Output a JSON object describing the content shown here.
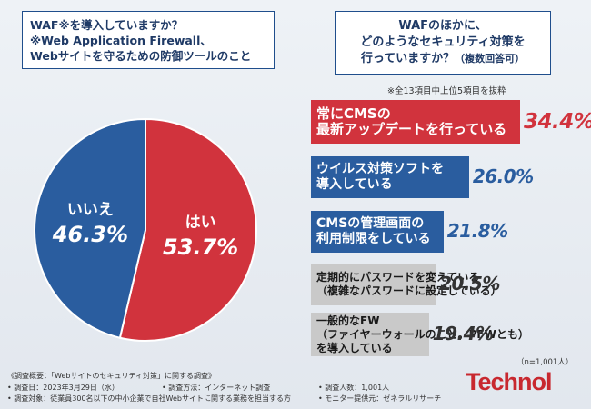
{
  "q1": {
    "line1": "WAF※を導入していますか？",
    "line2": "※Web Application Firewall、",
    "line3": "Webサイトを守るための防御ツールのこと"
  },
  "q2": {
    "line1": "WAFのほかに、",
    "line2": "どのようなセキュリティ対策を",
    "line3": "行っていますか？",
    "line3b": "（複数回答可）"
  },
  "note_top": "※全13項目中上位5項目を抜粋",
  "chart_data": [
    {
      "type": "pie",
      "slices": [
        {
          "label": "はい",
          "value": 53.7,
          "display": "53.7%",
          "color": "#d1333d"
        },
        {
          "label": "いいえ",
          "value": 46.3,
          "display": "46.3%",
          "color": "#2a5d9f"
        }
      ]
    },
    {
      "type": "bar",
      "categories": [
        [
          "常にCMSの",
          "最新アップデートを行っている"
        ],
        [
          "ウイルス対策ソフトを",
          "導入している"
        ],
        [
          "CMSの管理画面の",
          "利用制限をしている"
        ],
        [
          "定期的にパスワードを変えている",
          "（複雑なパスワードに設定している）"
        ],
        [
          "一般的なFW",
          "（ファイヤーウォールのこと。PFWとも）",
          "を導入している"
        ]
      ],
      "values": [
        34.4,
        26.0,
        21.8,
        20.5,
        19.4
      ],
      "display": [
        "34.4%",
        "26.0%",
        "21.8%",
        "20.5%",
        "19.4%"
      ],
      "colors": [
        "#d1333d",
        "#2a5d9f",
        "#2a5d9f",
        "#c9c9c9",
        "#c9c9c9"
      ],
      "value_colors": [
        "#d1333d",
        "#2a5d9f",
        "#2a5d9f",
        "#333333",
        "#333333"
      ]
    }
  ],
  "n_note": "（n=1,001人）",
  "footer": {
    "title": "《調査概要：「Webサイトのセキュリティ対策」に関する調査》",
    "date": "• 調査日：2023年3月29日（水）",
    "method": "• 調査方法：インターネット調査",
    "count": "• 調査人数：1,001人",
    "target": "• 調査対象：従業員300名以下の中小企業で自社Webサイトに関する業務を担当する方",
    "monitor": "• モニター提供元：ゼネラルリサーチ"
  },
  "logo": "Technol"
}
